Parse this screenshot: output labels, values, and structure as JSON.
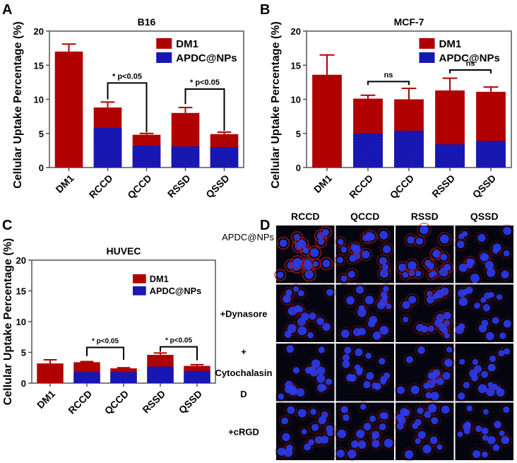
{
  "panel_letters": [
    "A",
    "B",
    "C",
    "D"
  ],
  "colors": {
    "dm1": "#b00000",
    "apdc": "#1010a8",
    "axis": "#555555"
  },
  "chart_data": [
    {
      "type": "bar",
      "stacked": true,
      "panel": "A",
      "title": "B16",
      "ylabel": "Cellular Uptake Percentage (%)",
      "ylim": [
        0,
        20
      ],
      "yticks": [
        "0",
        "5",
        "10",
        "15",
        "20"
      ],
      "categories": [
        "DM1",
        "RCCD",
        "QCCD",
        "RSSD",
        "QSSD"
      ],
      "legend": "top-right",
      "series": [
        {
          "name": "DM1",
          "values": [
            17.0,
            8.8,
            4.8,
            8.0,
            4.9
          ],
          "error_top": [
            18.1,
            9.6,
            5.0,
            8.8,
            5.2
          ]
        },
        {
          "name": "APDC@NPs",
          "values": [
            null,
            5.8,
            3.2,
            3.1,
            3.0
          ],
          "error_top": [
            null,
            6.5,
            4.6,
            3.2,
            3.7
          ]
        }
      ],
      "annotations": [
        {
          "from": "RCCD",
          "to": "QCCD",
          "level": 12.4,
          "text": "* p<0.05",
          "left_drop": 10.0,
          "right_drop": 5.2
        },
        {
          "from": "RSSD",
          "to": "QSSD",
          "level": 11.5,
          "text": "* p<0.05",
          "left_drop": 9.3,
          "right_drop": 5.4
        }
      ]
    },
    {
      "type": "bar",
      "stacked": true,
      "panel": "B",
      "title": "MCF-7",
      "ylabel": "Cellular Uptake Percentage (%)",
      "ylim": [
        0,
        20
      ],
      "yticks": [
        "0",
        "5",
        "10",
        "15",
        "20"
      ],
      "categories": [
        "DM1",
        "RCCD",
        "QCCD",
        "RSSD",
        "QSSD"
      ],
      "legend": "top-right",
      "series": [
        {
          "name": "DM1",
          "values": [
            13.6,
            10.1,
            10.0,
            11.3,
            11.1
          ],
          "error_top": [
            16.5,
            10.6,
            11.6,
            13.1,
            11.8
          ]
        },
        {
          "name": "APDC@NPs",
          "values": [
            null,
            5.0,
            5.4,
            3.4,
            3.9
          ],
          "error_top": [
            null,
            6.3,
            6.6,
            4.3,
            null
          ]
        }
      ],
      "annotations": [
        {
          "from": "RCCD",
          "to": "QCCD",
          "level": 12.6,
          "text": "ns",
          "left_drop": 12.1,
          "right_drop": 12.1
        },
        {
          "from": "RSSD",
          "to": "QSSD",
          "level": 14.3,
          "text": "ns",
          "left_drop": 13.8,
          "right_drop": 13.8
        }
      ]
    },
    {
      "type": "bar",
      "stacked": true,
      "panel": "C",
      "title": "HUVEC",
      "ylabel": "Cellular Uptake Percentage (%)",
      "ylim": [
        0,
        20
      ],
      "yticks": [
        "0",
        "5",
        "10",
        "15",
        "20"
      ],
      "categories": [
        "DM1",
        "RCCD",
        "QCCD",
        "RSSD",
        "QSSD"
      ],
      "legend": "top-right",
      "series": [
        {
          "name": "DM1",
          "values": [
            3.2,
            3.4,
            2.4,
            4.6,
            2.8
          ],
          "error_top": [
            3.8,
            3.5,
            2.5,
            4.9,
            3.0
          ]
        },
        {
          "name": "APDC@NPs",
          "values": [
            null,
            1.8,
            1.8,
            2.7,
            2.0
          ],
          "error_top": [
            null,
            2.0,
            1.9,
            3.3,
            2.5
          ]
        }
      ],
      "annotations": [
        {
          "from": "RCCD",
          "to": "QCCD",
          "level": 5.8,
          "text": "* p<0.05",
          "left_drop": 4.4,
          "right_drop": 3.8
        },
        {
          "from": "RSSD",
          "to": "QSSD",
          "level": 5.9,
          "text": "* p<0.05",
          "left_drop": 5.1,
          "right_drop": 3.7
        }
      ]
    }
  ],
  "microscopy": {
    "columns": [
      "RCCD",
      "QCCD",
      "RSSD",
      "QSSD"
    ],
    "rows": [
      "APDC@NPs",
      "+Dynasore",
      "+\nCytochalasin\nD",
      "+cRGD"
    ],
    "row_label_lines": [
      [
        "APDC@NPs"
      ],
      [
        "+Dynasore"
      ],
      [
        "+",
        "Cytochalasin",
        "D"
      ],
      [
        "+cRGD"
      ]
    ],
    "red_signal": [
      [
        0.9,
        0.5,
        0.6,
        0.3
      ],
      [
        0.3,
        0.3,
        0.4,
        0.2
      ],
      [
        0.2,
        0.2,
        0.3,
        0.2
      ],
      [
        0.3,
        0.3,
        0.3,
        0.2
      ]
    ]
  }
}
